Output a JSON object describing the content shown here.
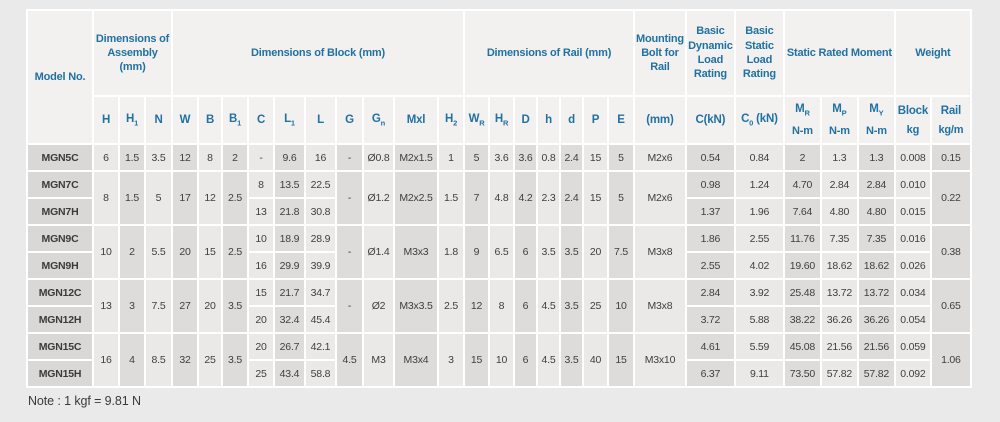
{
  "note": "Note : 1 kgf = 9.81 N",
  "colors": {
    "page_bg": "#ebeaea",
    "header_bg": "#f2f1f0",
    "header_text": "#2171a1",
    "stripe_light": "#eae9e8",
    "stripe_dark": "#dddcdb",
    "model_col_bg": "#d9d8d7",
    "body_text": "#3f3e3e",
    "separator": "#ffffff"
  },
  "table": {
    "groups": [
      {
        "label": "Model No.",
        "colspan": 1,
        "rowspan": 2,
        "key": "model"
      },
      {
        "label": "Dimensions of Assembly (mm)",
        "colspan": 3,
        "key": "assembly"
      },
      {
        "label": "Dimensions of Block (mm)",
        "colspan": 10,
        "key": "block"
      },
      {
        "label": "Dimensions of Rail (mm)",
        "colspan": 7,
        "key": "rail"
      },
      {
        "label": "Mounting Bolt for Rail",
        "colspan": 1,
        "key": "mounting-bolt"
      },
      {
        "label": "Basic Dynamic Load Rating",
        "colspan": 1,
        "key": "dynamic-load"
      },
      {
        "label": "Basic Static Load Rating",
        "colspan": 1,
        "key": "static-load"
      },
      {
        "label": "Static Rated Moment",
        "colspan": 3,
        "key": "static-moment"
      },
      {
        "label": "Weight",
        "colspan": 2,
        "key": "weight"
      }
    ],
    "subheaders": [
      {
        "t": "H",
        "key": "H"
      },
      {
        "t": "H",
        "sub": "1",
        "key": "H1"
      },
      {
        "t": "N",
        "key": "N"
      },
      {
        "t": "W",
        "key": "W"
      },
      {
        "t": "B",
        "key": "B"
      },
      {
        "t": "B",
        "sub": "1",
        "key": "B1"
      },
      {
        "t": "C",
        "key": "C"
      },
      {
        "t": "L",
        "sub": "1",
        "key": "L1"
      },
      {
        "t": "L",
        "key": "L"
      },
      {
        "t": "G",
        "key": "G"
      },
      {
        "t": "G",
        "sub": "n",
        "key": "Gn"
      },
      {
        "t": "Mxl",
        "key": "Mxl"
      },
      {
        "t": "H",
        "sub": "2",
        "key": "H2"
      },
      {
        "t": "W",
        "sub": "R",
        "key": "WR"
      },
      {
        "t": "H",
        "sub": "R",
        "key": "HR"
      },
      {
        "t": "D",
        "key": "D"
      },
      {
        "t": "h",
        "key": "h"
      },
      {
        "t": "d",
        "key": "d"
      },
      {
        "t": "P",
        "key": "P"
      },
      {
        "t": "E",
        "key": "E"
      },
      {
        "t": "(mm)",
        "key": "bolt-mm"
      },
      {
        "t": "C(kN)",
        "key": "C-kN"
      },
      {
        "t": "C",
        "sub": "0",
        "after": " (kN)",
        "key": "C0-kN"
      },
      {
        "t": "M",
        "sub": "R",
        "l2": "N-m",
        "key": "MR"
      },
      {
        "t": "M",
        "sub": "P",
        "l2": "N-m",
        "key": "MP"
      },
      {
        "t": "M",
        "sub": "Y",
        "l2": "N-m",
        "key": "MY"
      },
      {
        "t": "Block",
        "l2": "kg",
        "key": "weight-block"
      },
      {
        "t": "Rail",
        "l2": "kg/m",
        "key": "weight-rail"
      }
    ],
    "rows": [
      {
        "model": "MGN5C",
        "cells": [
          "MGN5C",
          "6",
          "1.5",
          "3.5",
          "12",
          "8",
          "2",
          "-",
          "9.6",
          "16",
          "-",
          "Ø0.8",
          "M2x1.5",
          "1",
          "5",
          "3.6",
          "3.6",
          "0.8",
          "2.4",
          "15",
          "5",
          "M2x6",
          "0.54",
          "0.84",
          "2",
          "1.3",
          "1.3",
          "0.008",
          "0.15"
        ]
      },
      {
        "model": "MGN7C",
        "cells": [
          "MGN7C",
          [
            "8",
            2
          ],
          [
            "1.5",
            2
          ],
          [
            "5",
            2
          ],
          [
            "17",
            2
          ],
          [
            "12",
            2
          ],
          [
            "2.5",
            2
          ],
          "8",
          "13.5",
          "22.5",
          [
            "-",
            2
          ],
          [
            "Ø1.2",
            2
          ],
          [
            "M2x2.5",
            2
          ],
          [
            "1.5",
            2
          ],
          [
            "7",
            2
          ],
          [
            "4.8",
            2
          ],
          [
            "4.2",
            2
          ],
          [
            "2.3",
            2
          ],
          [
            "2.4",
            2
          ],
          [
            "15",
            2
          ],
          [
            "5",
            2
          ],
          [
            "M2x6",
            2
          ],
          "0.98",
          "1.24",
          "4.70",
          "2.84",
          "2.84",
          "0.010",
          [
            "0.22",
            2
          ]
        ]
      },
      {
        "model": "MGN7H",
        "cells": [
          "MGN7H",
          "13",
          "21.8",
          "30.8",
          "1.37",
          "1.96",
          "7.64",
          "4.80",
          "4.80",
          "0.015"
        ]
      },
      {
        "model": "MGN9C",
        "cells": [
          "MGN9C",
          [
            "10",
            2
          ],
          [
            "2",
            2
          ],
          [
            "5.5",
            2
          ],
          [
            "20",
            2
          ],
          [
            "15",
            2
          ],
          [
            "2.5",
            2
          ],
          "10",
          "18.9",
          "28.9",
          [
            "-",
            2
          ],
          [
            "Ø1.4",
            2
          ],
          [
            "M3x3",
            2
          ],
          [
            "1.8",
            2
          ],
          [
            "9",
            2
          ],
          [
            "6.5",
            2
          ],
          [
            "6",
            2
          ],
          [
            "3.5",
            2
          ],
          [
            "3.5",
            2
          ],
          [
            "20",
            2
          ],
          [
            "7.5",
            2
          ],
          [
            "M3x8",
            2
          ],
          "1.86",
          "2.55",
          "11.76",
          "7.35",
          "7.35",
          "0.016",
          [
            "0.38",
            2
          ]
        ]
      },
      {
        "model": "MGN9H",
        "cells": [
          "MGN9H",
          "16",
          "29.9",
          "39.9",
          "2.55",
          "4.02",
          "19.60",
          "18.62",
          "18.62",
          "0.026"
        ]
      },
      {
        "model": "MGN12C",
        "cells": [
          "MGN12C",
          [
            "13",
            2
          ],
          [
            "3",
            2
          ],
          [
            "7.5",
            2
          ],
          [
            "27",
            2
          ],
          [
            "20",
            2
          ],
          [
            "3.5",
            2
          ],
          "15",
          "21.7",
          "34.7",
          [
            "-",
            2
          ],
          [
            "Ø2",
            2
          ],
          [
            "M3x3.5",
            2
          ],
          [
            "2.5",
            2
          ],
          [
            "12",
            2
          ],
          [
            "8",
            2
          ],
          [
            "6",
            2
          ],
          [
            "4.5",
            2
          ],
          [
            "3.5",
            2
          ],
          [
            "25",
            2
          ],
          [
            "10",
            2
          ],
          [
            "M3x8",
            2
          ],
          "2.84",
          "3.92",
          "25.48",
          "13.72",
          "13.72",
          "0.034",
          [
            "0.65",
            2
          ]
        ]
      },
      {
        "model": "MGN12H",
        "cells": [
          "MGN12H",
          "20",
          "32.4",
          "45.4",
          "3.72",
          "5.88",
          "38.22",
          "36.26",
          "36.26",
          "0.054"
        ]
      },
      {
        "model": "MGN15C",
        "cells": [
          "MGN15C",
          [
            "16",
            2
          ],
          [
            "4",
            2
          ],
          [
            "8.5",
            2
          ],
          [
            "32",
            2
          ],
          [
            "25",
            2
          ],
          [
            "3.5",
            2
          ],
          "20",
          "26.7",
          "42.1",
          [
            "4.5",
            2
          ],
          [
            "M3",
            2
          ],
          [
            "M3x4",
            2
          ],
          [
            "3",
            2
          ],
          [
            "15",
            2
          ],
          [
            "10",
            2
          ],
          [
            "6",
            2
          ],
          [
            "4.5",
            2
          ],
          [
            "3.5",
            2
          ],
          [
            "40",
            2
          ],
          [
            "15",
            2
          ],
          [
            "M3x10",
            2
          ],
          "4.61",
          "5.59",
          "45.08",
          "21.56",
          "21.56",
          "0.059",
          [
            "1.06",
            2
          ]
        ]
      },
      {
        "model": "MGN15H",
        "cells": [
          "MGN15H",
          "25",
          "43.4",
          "58.8",
          "6.37",
          "9.11",
          "73.50",
          "57.82",
          "57.82",
          "0.092"
        ]
      }
    ]
  }
}
